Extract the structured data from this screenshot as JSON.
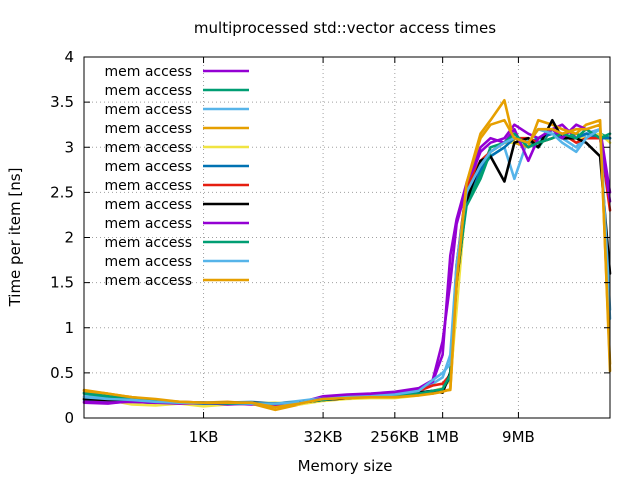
{
  "chart_data": {
    "type": "line",
    "title": "multiprocessed std::vector access times",
    "xlabel": "Memory size",
    "ylabel": "Time per item [ns]",
    "xscale": "log2",
    "xlim": [
      32,
      134217728
    ],
    "ylim": [
      0,
      4
    ],
    "x_ticks": [
      {
        "label": "1KB",
        "value": 1024
      },
      {
        "label": "32KB",
        "value": 32768
      },
      {
        "label": "256KB",
        "value": 262144
      },
      {
        "label": "1MB",
        "value": 1048576
      },
      {
        "label": "9MB",
        "value": 9437184
      }
    ],
    "y_ticks": [
      {
        "label": "0",
        "value": 0
      },
      {
        "label": "0.5",
        "value": 0.5
      },
      {
        "label": "1",
        "value": 1
      },
      {
        "label": "1.5",
        "value": 1.5
      },
      {
        "label": "2",
        "value": 2
      },
      {
        "label": "2.5",
        "value": 2.5
      },
      {
        "label": "3",
        "value": 3
      },
      {
        "label": "3.5",
        "value": 3.5
      },
      {
        "label": "4",
        "value": 4
      }
    ],
    "grid": true,
    "legend_position": "top-left",
    "series": [
      {
        "name": "mem access",
        "color": "#9400d3",
        "x": [
          32,
          64,
          128,
          256,
          512,
          1024,
          2048,
          4096,
          8192,
          16384,
          32768,
          65536,
          131072,
          262144,
          524288,
          786432,
          1048576,
          1310720,
          1572864,
          2097152,
          3145728,
          4194304,
          6291456,
          8388608,
          12582912,
          16777216,
          25165824,
          33554432,
          50331648,
          67108864,
          100663296,
          134217728
        ],
        "y": [
          0.17,
          0.16,
          0.19,
          0.16,
          0.18,
          0.17,
          0.16,
          0.15,
          0.14,
          0.17,
          0.24,
          0.26,
          0.27,
          0.29,
          0.33,
          0.42,
          0.85,
          1.5,
          2.15,
          2.55,
          2.95,
          3.05,
          3.1,
          3.25,
          3.15,
          3.1,
          3.2,
          3.25,
          3.1,
          3.15,
          3.2,
          2.5
        ]
      },
      {
        "name": "mem access",
        "color": "#009e73",
        "x": [
          32,
          64,
          128,
          256,
          512,
          1024,
          2048,
          4096,
          8192,
          16384,
          32768,
          65536,
          131072,
          262144,
          524288,
          786432,
          1048576,
          1310720,
          1572864,
          2097152,
          3145728,
          4194304,
          6291456,
          8388608,
          12582912,
          16777216,
          25165824,
          33554432,
          50331648,
          67108864,
          100663296,
          134217728
        ],
        "y": [
          0.28,
          0.24,
          0.2,
          0.18,
          0.17,
          0.17,
          0.16,
          0.17,
          0.15,
          0.16,
          0.2,
          0.22,
          0.23,
          0.25,
          0.28,
          0.3,
          0.32,
          0.5,
          1.5,
          2.4,
          2.7,
          3.0,
          3.05,
          3.1,
          3.05,
          3.0,
          3.2,
          3.1,
          3.15,
          3.1,
          3.15,
          3.1
        ]
      },
      {
        "name": "mem access",
        "color": "#56b4e9",
        "x": [
          32,
          64,
          128,
          256,
          512,
          1024,
          2048,
          4096,
          8192,
          16384,
          32768,
          65536,
          131072,
          262144,
          524288,
          786432,
          1048576,
          1310720,
          1572864,
          2097152,
          3145728,
          4194304,
          6291456,
          8388608,
          12582912,
          16777216,
          25165824,
          33554432,
          50331648,
          67108864,
          100663296,
          134217728
        ],
        "y": [
          0.24,
          0.22,
          0.2,
          0.19,
          0.18,
          0.16,
          0.17,
          0.18,
          0.16,
          0.19,
          0.22,
          0.23,
          0.25,
          0.28,
          0.3,
          0.38,
          0.45,
          0.7,
          1.7,
          2.55,
          2.85,
          2.9,
          3.0,
          2.65,
          3.1,
          3.05,
          3.2,
          3.1,
          3.0,
          3.15,
          3.2,
          1.1
        ]
      },
      {
        "name": "mem access",
        "color": "#e69f00",
        "x": [
          32,
          64,
          128,
          256,
          512,
          1024,
          2048,
          4096,
          8192,
          16384,
          32768,
          65536,
          131072,
          262144,
          524288,
          786432,
          1048576,
          1310720,
          1572864,
          2097152,
          3145728,
          4194304,
          6291456,
          8388608,
          12582912,
          16777216,
          25165824,
          33554432,
          50331648,
          67108864,
          100663296,
          134217728
        ],
        "y": [
          0.31,
          0.27,
          0.23,
          0.2,
          0.18,
          0.17,
          0.18,
          0.16,
          0.09,
          0.15,
          0.21,
          0.22,
          0.23,
          0.24,
          0.26,
          0.27,
          0.3,
          0.31,
          1.4,
          2.6,
          3.15,
          3.3,
          3.52,
          3.05,
          3.0,
          3.3,
          3.25,
          3.2,
          3.15,
          3.25,
          3.3,
          0.52
        ]
      },
      {
        "name": "mem access",
        "color": "#f0e442",
        "x": [
          32,
          64,
          128,
          256,
          512,
          1024,
          2048,
          4096,
          8192,
          16384,
          32768,
          65536,
          131072,
          262144,
          524288,
          786432,
          1048576,
          1310720,
          1572864,
          2097152,
          3145728,
          4194304,
          6291456,
          8388608,
          12582912,
          16777216,
          25165824,
          33554432,
          50331648,
          67108864,
          100663296,
          134217728
        ],
        "y": [
          0.22,
          0.2,
          0.15,
          0.14,
          0.16,
          0.13,
          0.15,
          0.16,
          0.17,
          0.15,
          0.19,
          0.21,
          0.22,
          0.22,
          0.25,
          0.3,
          0.33,
          0.42,
          1.2,
          2.5,
          2.8,
          2.95,
          3.05,
          3.05,
          3.1,
          3.05,
          3.1,
          3.15,
          3.1,
          3.1,
          3.15,
          3.05
        ]
      },
      {
        "name": "mem access",
        "color": "#0072b2",
        "x": [
          32,
          64,
          128,
          256,
          512,
          1024,
          2048,
          4096,
          8192,
          16384,
          32768,
          65536,
          131072,
          262144,
          524288,
          786432,
          1048576,
          1310720,
          1572864,
          2097152,
          3145728,
          4194304,
          6291456,
          8388608,
          12582912,
          16777216,
          25165824,
          33554432,
          50331648,
          67108864,
          100663296,
          134217728
        ],
        "y": [
          0.2,
          0.19,
          0.18,
          0.17,
          0.17,
          0.16,
          0.16,
          0.16,
          0.15,
          0.17,
          0.2,
          0.22,
          0.24,
          0.26,
          0.28,
          0.3,
          0.32,
          0.45,
          1.6,
          2.45,
          2.75,
          2.9,
          3.0,
          3.1,
          3.05,
          3.1,
          3.15,
          3.1,
          3.1,
          3.15,
          3.1,
          3.1
        ]
      },
      {
        "name": "mem access",
        "color": "#e51e10",
        "x": [
          32,
          64,
          128,
          256,
          512,
          1024,
          2048,
          4096,
          8192,
          16384,
          32768,
          65536,
          131072,
          262144,
          524288,
          786432,
          1048576,
          1310720,
          1572864,
          2097152,
          3145728,
          4194304,
          6291456,
          8388608,
          12582912,
          16777216,
          25165824,
          33554432,
          50331648,
          67108864,
          100663296,
          134217728
        ],
        "y": [
          0.21,
          0.2,
          0.19,
          0.17,
          0.17,
          0.17,
          0.16,
          0.16,
          0.16,
          0.17,
          0.2,
          0.22,
          0.24,
          0.27,
          0.3,
          0.36,
          0.38,
          0.48,
          1.7,
          2.55,
          2.85,
          2.95,
          3.05,
          3.1,
          3.1,
          3.05,
          3.1,
          3.15,
          3.05,
          3.1,
          3.1,
          2.3
        ]
      },
      {
        "name": "mem access",
        "color": "#000000",
        "x": [
          32,
          64,
          128,
          256,
          512,
          1024,
          2048,
          4096,
          8192,
          16384,
          32768,
          65536,
          131072,
          262144,
          524288,
          786432,
          1048576,
          1310720,
          1572864,
          2097152,
          3145728,
          4194304,
          6291456,
          8388608,
          12582912,
          16777216,
          25165824,
          33554432,
          50331648,
          67108864,
          100663296,
          134217728
        ],
        "y": [
          0.21,
          0.2,
          0.19,
          0.18,
          0.17,
          0.17,
          0.17,
          0.17,
          0.16,
          0.17,
          0.2,
          0.22,
          0.24,
          0.26,
          0.28,
          0.3,
          0.28,
          0.5,
          1.5,
          2.4,
          2.85,
          2.9,
          2.62,
          3.05,
          3.1,
          3.0,
          3.3,
          3.1,
          3.1,
          3.05,
          2.9,
          1.6
        ]
      },
      {
        "name": "mem access",
        "color": "#9400d3",
        "x": [
          32,
          64,
          128,
          256,
          512,
          1024,
          2048,
          4096,
          8192,
          16384,
          32768,
          65536,
          131072,
          262144,
          524288,
          786432,
          1048576,
          1310720,
          1572864,
          2097152,
          3145728,
          4194304,
          6291456,
          8388608,
          12582912,
          16777216,
          25165824,
          33554432,
          50331648,
          67108864,
          100663296,
          134217728
        ],
        "y": [
          0.18,
          0.17,
          0.18,
          0.17,
          0.16,
          0.17,
          0.15,
          0.16,
          0.15,
          0.16,
          0.22,
          0.24,
          0.26,
          0.28,
          0.32,
          0.4,
          0.7,
          1.8,
          2.2,
          2.6,
          3.0,
          3.1,
          3.05,
          3.2,
          2.85,
          3.1,
          3.2,
          3.1,
          3.25,
          3.2,
          3.1,
          2.4
        ]
      },
      {
        "name": "mem access",
        "color": "#009e73",
        "x": [
          32,
          64,
          128,
          256,
          512,
          1024,
          2048,
          4096,
          8192,
          16384,
          32768,
          65536,
          131072,
          262144,
          524288,
          786432,
          1048576,
          1310720,
          1572864,
          2097152,
          3145728,
          4194304,
          6291456,
          8388608,
          12582912,
          16777216,
          25165824,
          33554432,
          50331648,
          67108864,
          100663296,
          134217728
        ],
        "y": [
          0.27,
          0.24,
          0.21,
          0.19,
          0.17,
          0.17,
          0.16,
          0.16,
          0.16,
          0.17,
          0.2,
          0.23,
          0.23,
          0.25,
          0.27,
          0.3,
          0.32,
          0.48,
          1.55,
          2.35,
          2.65,
          2.95,
          3.05,
          3.15,
          3.0,
          3.05,
          3.1,
          3.15,
          3.1,
          3.2,
          3.1,
          3.15
        ]
      },
      {
        "name": "mem access",
        "color": "#56b4e9",
        "x": [
          32,
          64,
          128,
          256,
          512,
          1024,
          2048,
          4096,
          8192,
          16384,
          32768,
          65536,
          131072,
          262144,
          524288,
          786432,
          1048576,
          1310720,
          1572864,
          2097152,
          3145728,
          4194304,
          6291456,
          8388608,
          12582912,
          16777216,
          25165824,
          33554432,
          50331648,
          67108864,
          100663296,
          134217728
        ],
        "y": [
          0.23,
          0.21,
          0.2,
          0.18,
          0.17,
          0.17,
          0.17,
          0.16,
          0.16,
          0.17,
          0.21,
          0.23,
          0.24,
          0.26,
          0.3,
          0.42,
          0.5,
          0.6,
          1.7,
          2.5,
          2.8,
          2.95,
          3.05,
          3.1,
          3.05,
          3.2,
          3.15,
          3.05,
          2.95,
          3.1,
          3.2,
          1.2
        ]
      },
      {
        "name": "mem access",
        "color": "#e69f00",
        "x": [
          32,
          64,
          128,
          256,
          512,
          1024,
          2048,
          4096,
          8192,
          16384,
          32768,
          65536,
          131072,
          262144,
          524288,
          786432,
          1048576,
          1310720,
          1572864,
          2097152,
          3145728,
          4194304,
          6291456,
          8388608,
          12582912,
          16777216,
          25165824,
          33554432,
          50331648,
          67108864,
          100663296,
          134217728
        ],
        "y": [
          0.3,
          0.27,
          0.23,
          0.21,
          0.18,
          0.17,
          0.17,
          0.17,
          0.12,
          0.16,
          0.21,
          0.22,
          0.23,
          0.23,
          0.25,
          0.27,
          0.29,
          0.32,
          1.5,
          2.6,
          3.1,
          3.25,
          3.3,
          3.1,
          3.05,
          3.2,
          3.2,
          3.15,
          3.2,
          3.2,
          3.25,
          0.6
        ]
      }
    ]
  }
}
